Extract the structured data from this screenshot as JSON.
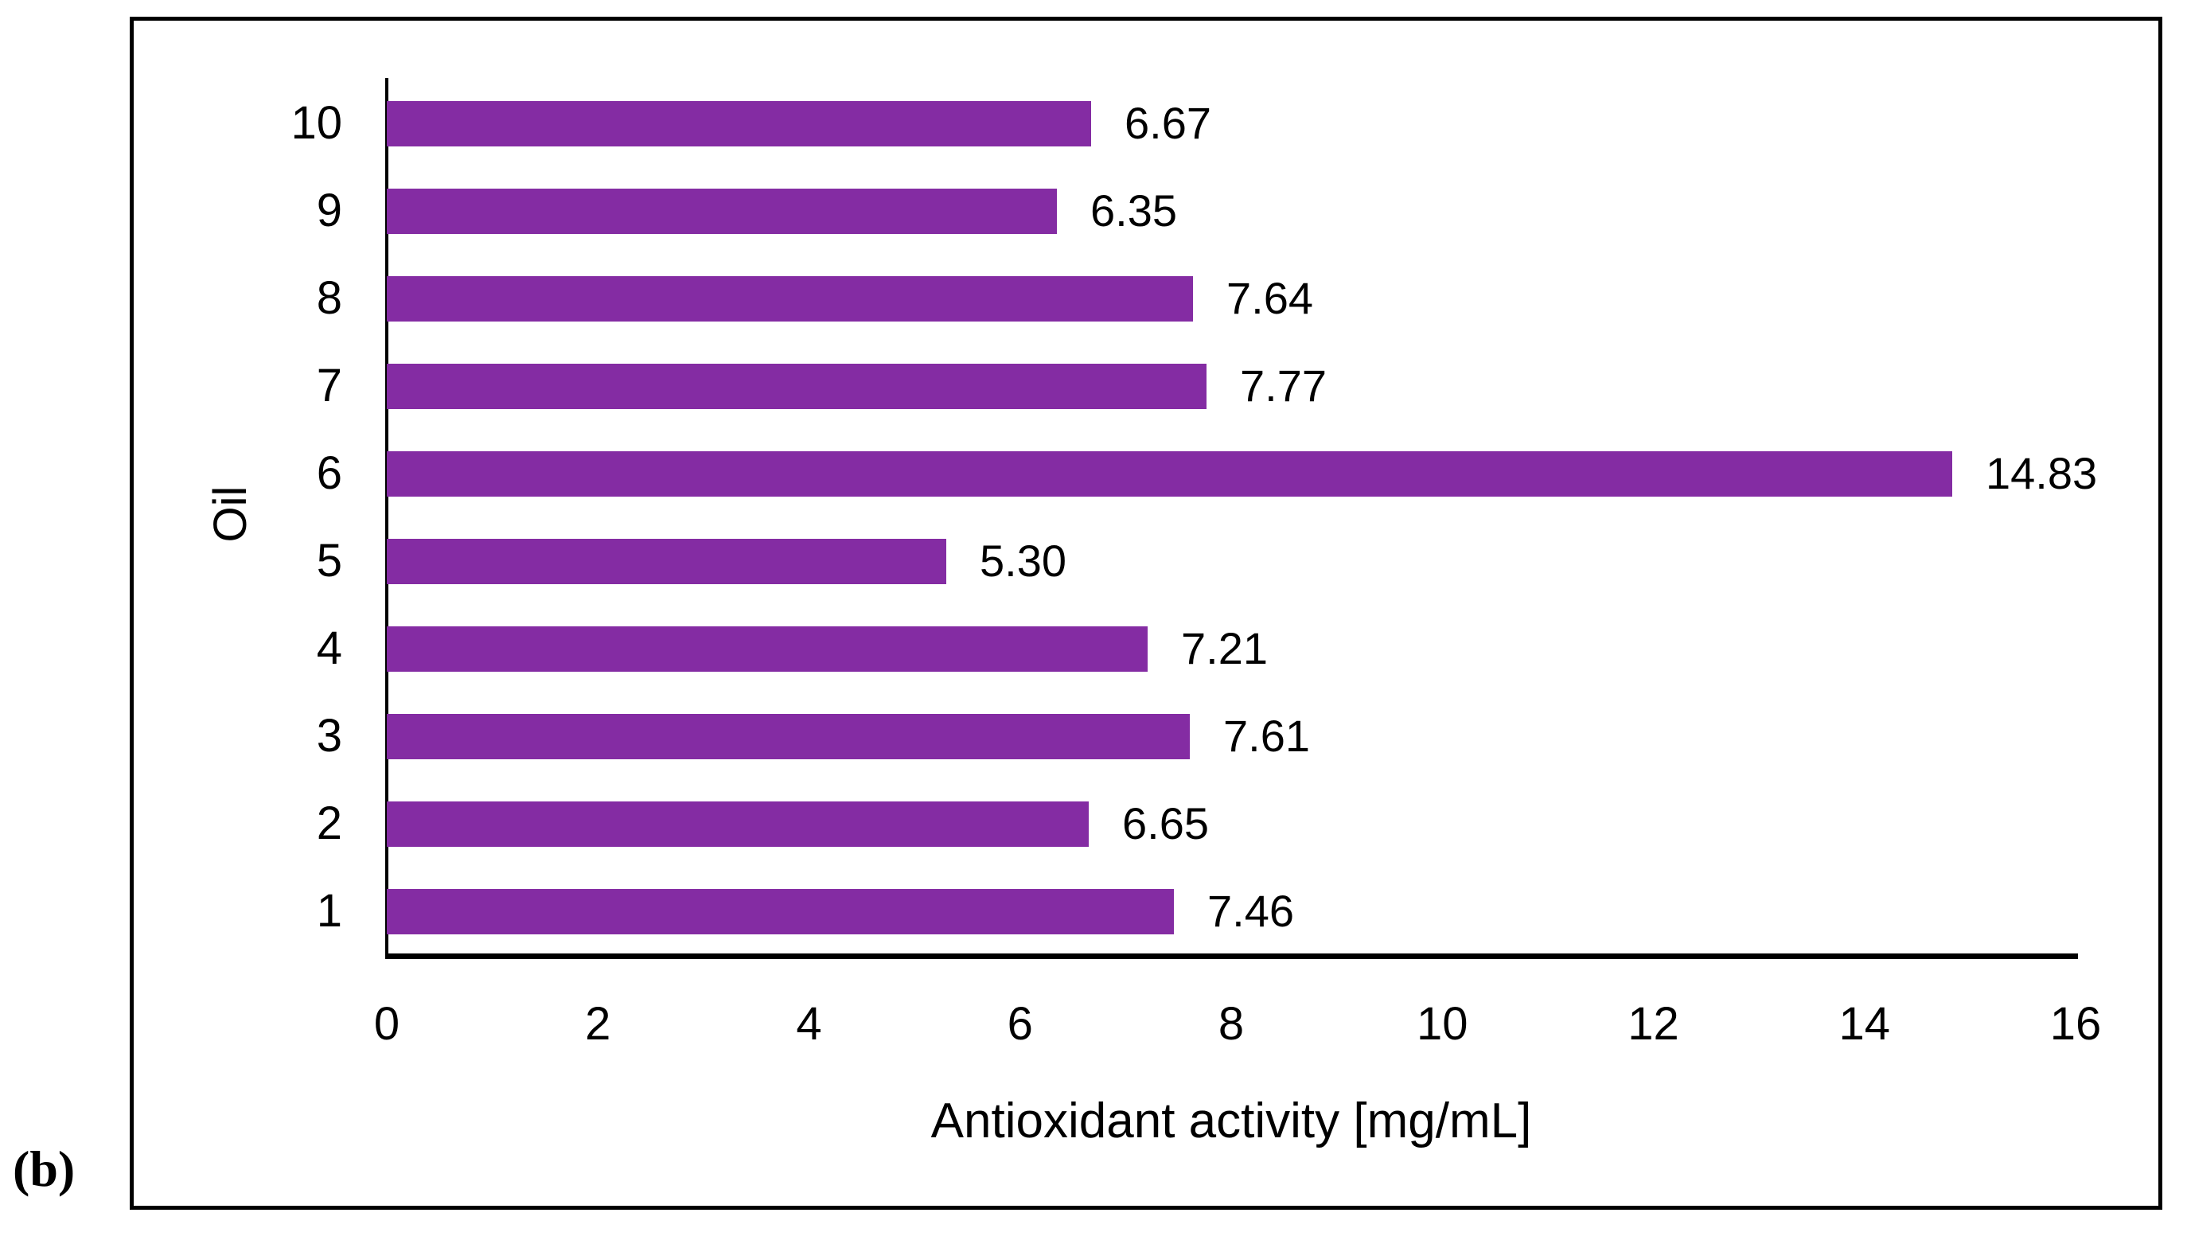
{
  "figure": {
    "panel_label": "(b)"
  },
  "chart_data": {
    "type": "bar",
    "orientation": "horizontal",
    "title": "",
    "xlabel": "Antioxidant activity [mg/mL]",
    "ylabel": "Oil",
    "categories": [
      "10",
      "9",
      "8",
      "7",
      "6",
      "5",
      "4",
      "3",
      "2",
      "1"
    ],
    "values": [
      6.67,
      6.35,
      7.64,
      7.77,
      14.83,
      5.3,
      7.21,
      7.61,
      6.65,
      7.46
    ],
    "value_labels": [
      "6.67",
      "6.35",
      "7.64",
      "7.77",
      "14.83",
      "5.30",
      "7.21",
      "7.61",
      "6.65",
      "7.46"
    ],
    "x_ticks": [
      0,
      2,
      4,
      6,
      8,
      10,
      12,
      14,
      16
    ],
    "xlim": [
      0,
      16
    ],
    "bar_color": "#842CA3",
    "axis_color": "#000000",
    "grid": false,
    "legend": false,
    "data_labels": true
  }
}
